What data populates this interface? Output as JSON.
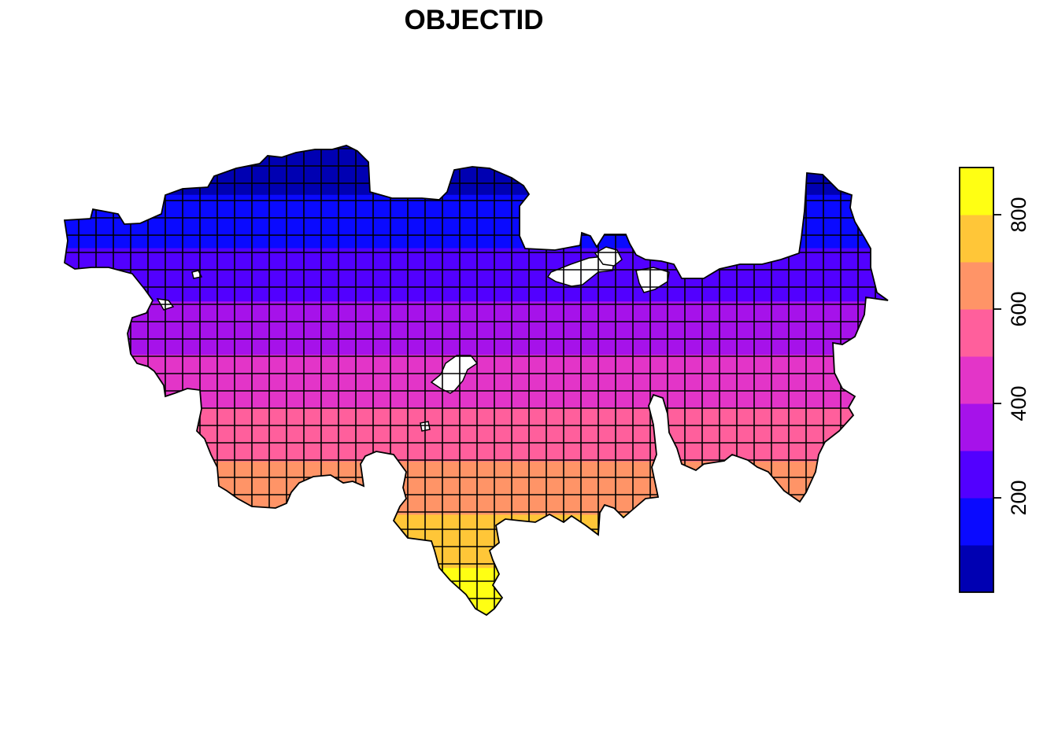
{
  "map": {
    "title": "OBJECTID",
    "palette": [
      "#0000B2",
      "#0A0AFF",
      "#5200FF",
      "#A612EA",
      "#E335C8",
      "#FF5F9C",
      "#FF9467",
      "#FFC638",
      "#FFFF13"
    ],
    "legend": {
      "placement": "right",
      "min": 0,
      "max": 900,
      "ticks": [
        200,
        400,
        600,
        800
      ],
      "tick_labels": [
        "200",
        "400",
        "600",
        "800"
      ]
    },
    "grid": true,
    "background": "#FFFFFF",
    "border_color": "#000000"
  }
}
